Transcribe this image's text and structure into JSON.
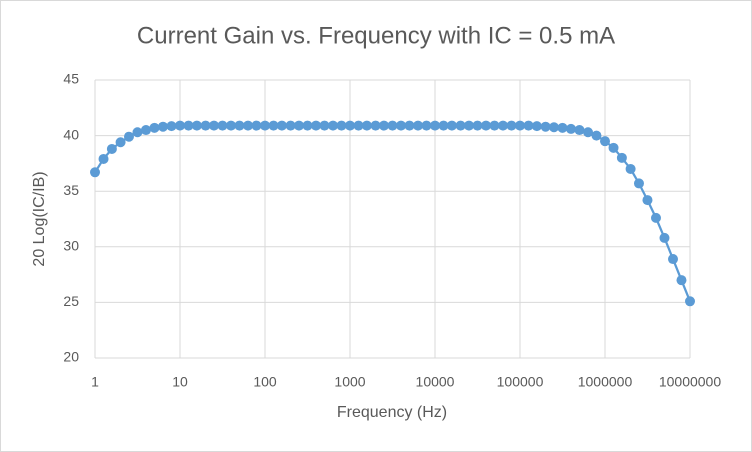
{
  "chart_data": {
    "type": "line",
    "title": "Current Gain vs. Frequency with IC = 0.5 mA",
    "x_label": "Frequency (Hz)",
    "y_label": "20 Log(IC/IB)",
    "x_log": true,
    "grid": true,
    "xlim": [
      1,
      10000000
    ],
    "xticks": [
      1,
      10,
      100,
      1000,
      10000,
      100000,
      1000000,
      10000000
    ],
    "ylim": [
      20,
      45
    ],
    "yticks": [
      20,
      25,
      30,
      35,
      40,
      45
    ],
    "series": [
      {
        "name": "20 Log(IC/IB)",
        "color": "#5b9bd5",
        "x": [
          1,
          1.26,
          1.58,
          2,
          2.51,
          3.16,
          3.98,
          5.01,
          6.31,
          7.94,
          10,
          12.6,
          15.8,
          20,
          25.1,
          31.6,
          39.8,
          50.1,
          63.1,
          79.4,
          100,
          126,
          158,
          200,
          251,
          316,
          398,
          501,
          631,
          794,
          1000,
          1260,
          1580,
          2000,
          2510,
          3160,
          3980,
          5010,
          6310,
          7940,
          10000,
          12600,
          15800,
          20000,
          25100,
          31600,
          39800,
          50100,
          63100,
          79400,
          100000,
          126000,
          158000,
          200000,
          251000,
          316000,
          398000,
          501000,
          631000,
          794000,
          1000000,
          1260000,
          1580000,
          2000000,
          2510000,
          3160000,
          3980000,
          5010000,
          6310000,
          7940000,
          10000000
        ],
        "values": [
          36.7,
          37.9,
          38.8,
          39.4,
          39.9,
          40.3,
          40.5,
          40.7,
          40.8,
          40.85,
          40.9,
          40.9,
          40.9,
          40.9,
          40.9,
          40.9,
          40.9,
          40.9,
          40.9,
          40.9,
          40.9,
          40.9,
          40.9,
          40.9,
          40.9,
          40.9,
          40.9,
          40.9,
          40.9,
          40.9,
          40.9,
          40.9,
          40.9,
          40.9,
          40.9,
          40.9,
          40.9,
          40.9,
          40.9,
          40.9,
          40.9,
          40.9,
          40.9,
          40.9,
          40.9,
          40.9,
          40.9,
          40.9,
          40.9,
          40.9,
          40.9,
          40.9,
          40.85,
          40.8,
          40.75,
          40.7,
          40.6,
          40.5,
          40.3,
          40.0,
          39.5,
          38.9,
          38.0,
          37.0,
          35.7,
          34.2,
          32.6,
          30.8,
          28.9,
          27.0,
          25.1
        ]
      }
    ]
  }
}
